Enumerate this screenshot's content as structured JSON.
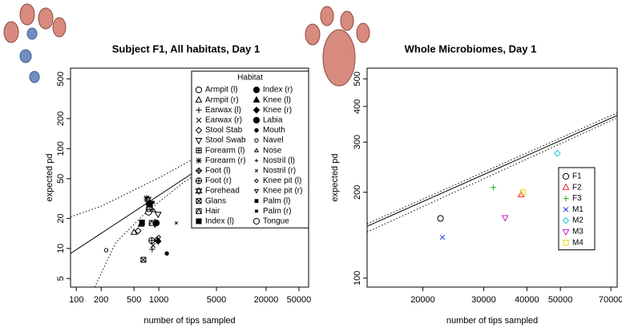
{
  "chart_data": [
    {
      "type": "scatter",
      "title": "Subject F1, All habitats, Day 1",
      "xlabel": "number of tips sampled",
      "ylabel": "expected pd",
      "xscale": "log",
      "yscale": "log",
      "xlim": [
        85,
        65500
      ],
      "ylim": [
        4.1,
        640
      ],
      "xticks": [
        100,
        200,
        500,
        1000,
        5000,
        20000,
        50000
      ],
      "yticks": [
        5,
        10,
        20,
        50,
        100,
        200,
        500
      ],
      "color": "#000000",
      "legend_title": "Habitat",
      "legend_position": "upper right",
      "legend_columns": 2,
      "lines": [
        {
          "style": "solid",
          "x": [
            85,
            65500
          ],
          "y": [
            8.9,
            331
          ]
        },
        {
          "style": "dotted",
          "x": [
            85,
            200,
            1000,
            5000,
            65500
          ],
          "y": [
            20.7,
            26.5,
            51,
            105,
            340
          ]
        },
        {
          "style": "dotted",
          "x": [
            167,
            300,
            700,
            2000,
            10000,
            65500
          ],
          "y": [
            4.1,
            11.4,
            23,
            46,
            108,
            315
          ]
        }
      ],
      "series": [
        {
          "name": "Armpit (l)",
          "marker": "circle",
          "x": [
            760
          ],
          "y": [
            25
          ]
        },
        {
          "name": "Armpit (r)",
          "marker": "triangle",
          "x": [
            500
          ],
          "y": [
            14.5
          ]
        },
        {
          "name": "Earwax (l)",
          "marker": "plus",
          "x": [
            830
          ],
          "y": [
            9.8
          ]
        },
        {
          "name": "Earwax (r)",
          "marker": "cross",
          "x": [
            850
          ],
          "y": [
            10.7
          ]
        },
        {
          "name": "Stool Stab",
          "marker": "diamond",
          "x": [
            560
          ],
          "y": [
            15
          ]
        },
        {
          "name": "Stool Swab",
          "marker": "tri-down",
          "x": [
            980
          ],
          "y": [
            22
          ]
        },
        {
          "name": "Forearm (l)",
          "marker": "square-plus",
          "x": [
            780
          ],
          "y": [
            26
          ]
        },
        {
          "name": "Forearm (r)",
          "marker": "asterisk",
          "x": [
            710
          ],
          "y": [
            32
          ]
        },
        {
          "name": "Foot (l)",
          "marker": "diamond-plus",
          "x": [
            950
          ],
          "y": [
            12.2
          ]
        },
        {
          "name": "Foot (r)",
          "marker": "circle-plus",
          "x": [
            820
          ],
          "y": [
            12
          ]
        },
        {
          "name": "Forehead",
          "marker": "star",
          "x": [
            740
          ],
          "y": [
            31
          ]
        },
        {
          "name": "Glans",
          "marker": "square-x",
          "x": [
            650
          ],
          "y": [
            7.7
          ]
        },
        {
          "name": "Hair",
          "marker": "square-tri",
          "x": [
            820
          ],
          "y": [
            18
          ]
        },
        {
          "name": "Index (l)",
          "marker": "filled-square",
          "x": [
            625
          ],
          "y": [
            18.2
          ]
        },
        {
          "name": "Index (r)",
          "marker": "filled-circle",
          "x": [
            760
          ],
          "y": [
            28
          ]
        },
        {
          "name": "Knee (l)",
          "marker": "filled-triangle",
          "x": [
            610
          ],
          "y": [
            17.5
          ]
        },
        {
          "name": "Knee (r)",
          "marker": "filled-diamond",
          "x": [
            980
          ],
          "y": [
            11.8
          ]
        },
        {
          "name": "Labia",
          "marker": "filled-circle",
          "x": [
            935
          ],
          "y": [
            18
          ]
        },
        {
          "name": "Mouth",
          "marker": "small-filled-circle",
          "x": [
            1250
          ],
          "y": [
            8.9
          ]
        },
        {
          "name": "Navel",
          "marker": "small-circle",
          "x": [
            230
          ],
          "y": [
            9.6
          ]
        },
        {
          "name": "Nose",
          "marker": "small-triangle",
          "x": [
            870
          ],
          "y": [
            24
          ]
        },
        {
          "name": "Nostril (l)",
          "marker": "small-plus",
          "x": [
            900
          ],
          "y": [
            19
          ]
        },
        {
          "name": "Nostril (r)",
          "marker": "small-cross",
          "x": [
            1630
          ],
          "y": [
            18
          ]
        },
        {
          "name": "Knee pit (l)",
          "marker": "small-diamond",
          "x": [
            1000
          ],
          "y": [
            13
          ]
        },
        {
          "name": "Knee pit (r)",
          "marker": "small-tri-down",
          "x": [
            900
          ],
          "y": [
            17
          ]
        },
        {
          "name": "Palm (l)",
          "marker": "small-filled-square",
          "x": [
            800
          ],
          "y": [
            27
          ]
        },
        {
          "name": "Palm (r)",
          "marker": "small-asterisk",
          "x": [
            850
          ],
          "y": [
            29
          ]
        },
        {
          "name": "Tongue",
          "marker": "circle",
          "x": [
            750
          ],
          "y": [
            23
          ]
        }
      ]
    },
    {
      "type": "scatter",
      "title": "Whole Microbiomes, Day 1",
      "xlabel": "number of tips sampled",
      "ylabel": "expected pd",
      "xscale": "log",
      "yscale": "log",
      "xlim": [
        13800,
        73000
      ],
      "ylim": [
        93,
        545
      ],
      "xticks": [
        20000,
        30000,
        40000,
        50000,
        70000
      ],
      "yticks": [
        100,
        200,
        300,
        400,
        500
      ],
      "legend_position": "right",
      "legend_columns": 1,
      "lines": [
        {
          "style": "solid",
          "x": [
            13800,
            73000
          ],
          "y": [
            152,
            372
          ]
        },
        {
          "style": "dotted",
          "x": [
            13800,
            73000
          ],
          "y": [
            155,
            380
          ]
        },
        {
          "style": "dotted",
          "x": [
            13800,
            73000
          ],
          "y": [
            145,
            365
          ]
        }
      ],
      "series": [
        {
          "name": "F1",
          "marker": "circle",
          "color": "#000000",
          "x": [
            22500
          ],
          "y": [
            162
          ]
        },
        {
          "name": "F2",
          "marker": "triangle",
          "color": "#e8202a",
          "x": [
            38500
          ],
          "y": [
            196
          ]
        },
        {
          "name": "F3",
          "marker": "plus",
          "color": "#22b422",
          "x": [
            32000
          ],
          "y": [
            208
          ]
        },
        {
          "name": "M1",
          "marker": "cross",
          "color": "#2244dd",
          "x": [
            22800
          ],
          "y": [
            139
          ]
        },
        {
          "name": "M2",
          "marker": "diamond",
          "color": "#22c8e0",
          "x": [
            49000
          ],
          "y": [
            274
          ]
        },
        {
          "name": "M3",
          "marker": "tri-down",
          "color": "#d020c8",
          "x": [
            34600
          ],
          "y": [
            163
          ]
        },
        {
          "name": "M4",
          "marker": "square",
          "color": "#e8d800",
          "x": [
            39000
          ],
          "y": [
            200
          ]
        }
      ]
    }
  ]
}
